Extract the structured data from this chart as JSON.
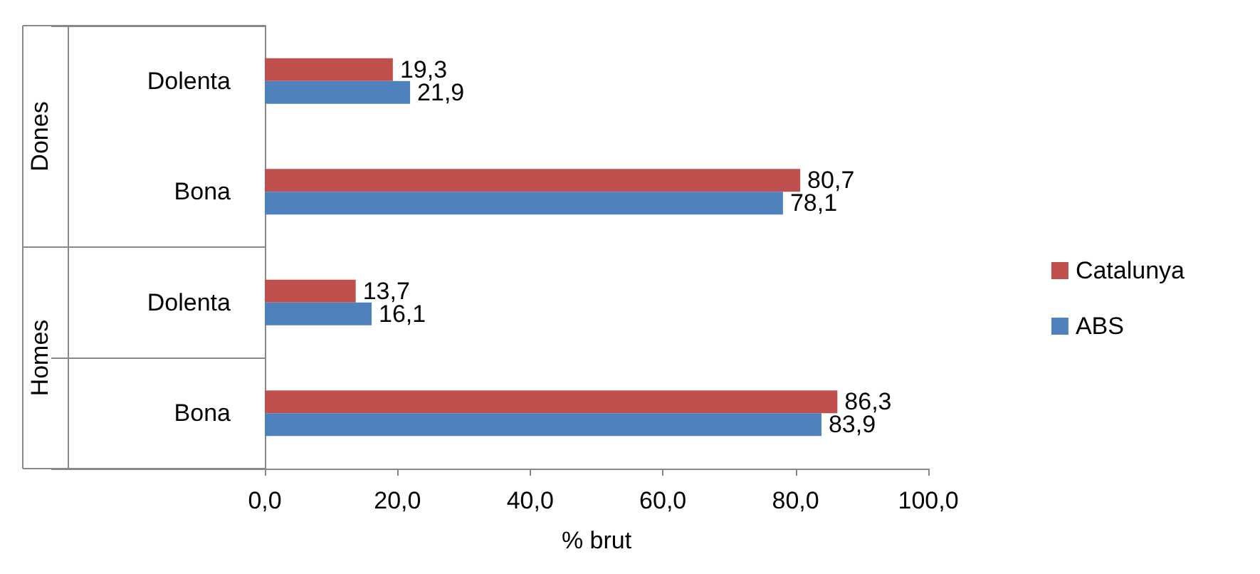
{
  "chart_data": {
    "type": "bar",
    "orientation": "horizontal",
    "xlabel": "% brut",
    "categories": [
      "Dolenta",
      "Bona",
      "Dolenta",
      "Bona"
    ],
    "annotations": [
      "Dones",
      "Homes"
    ],
    "series": [
      {
        "name": "Catalunya",
        "color": "#c0504d",
        "values": [
          19.3,
          80.7,
          13.7,
          86.3
        ],
        "value_labels": [
          "19,3",
          "80,7",
          "13,7",
          "86,3"
        ]
      },
      {
        "name": "ABS",
        "color": "#4f81bd",
        "values": [
          21.9,
          78.1,
          16.1,
          83.9
        ],
        "value_labels": [
          "21,9",
          "78,1",
          "16,1",
          "83,9"
        ]
      }
    ],
    "xlim": [
      0,
      100
    ],
    "xticks": [
      {
        "value": 0,
        "label": "0,0"
      },
      {
        "value": 20,
        "label": "20,0"
      },
      {
        "value": 40,
        "label": "40,0"
      },
      {
        "value": 60,
        "label": "60,0"
      },
      {
        "value": 80,
        "label": "80,0"
      },
      {
        "value": 100,
        "label": "100,0"
      }
    ],
    "grid": false,
    "legend": "right"
  }
}
